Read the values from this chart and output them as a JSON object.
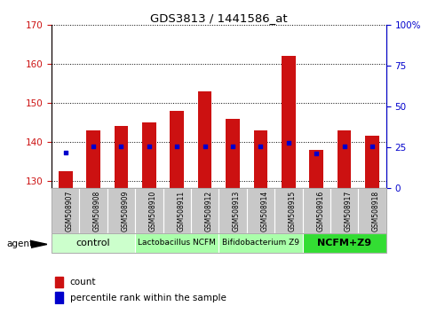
{
  "title": "GDS3813 / 1441586_at",
  "samples": [
    "GSM508907",
    "GSM508908",
    "GSM508909",
    "GSM508910",
    "GSM508911",
    "GSM508912",
    "GSM508913",
    "GSM508914",
    "GSM508915",
    "GSM508916",
    "GSM508917",
    "GSM508918"
  ],
  "counts": [
    132.5,
    143.0,
    144.0,
    145.0,
    148.0,
    153.0,
    146.0,
    143.0,
    162.0,
    138.0,
    143.0,
    141.5
  ],
  "percentile_ranks": [
    22.0,
    26.0,
    26.0,
    26.0,
    26.0,
    26.0,
    26.0,
    26.0,
    28.0,
    21.5,
    26.0,
    25.5
  ],
  "bar_color": "#cc1111",
  "dot_color": "#0000cc",
  "ylim_left": [
    128,
    170
  ],
  "ylim_right": [
    0,
    100
  ],
  "yticks_left": [
    130,
    140,
    150,
    160,
    170
  ],
  "yticks_right": [
    0,
    25,
    50,
    75,
    100
  ],
  "yticklabels_right": [
    "0",
    "25",
    "50",
    "75",
    "100%"
  ],
  "group_labels": [
    "control",
    "Lactobacillus NCFM",
    "Bifidobacterium Z9",
    "NCFM+Z9"
  ],
  "group_ranges": [
    [
      0,
      2
    ],
    [
      3,
      5
    ],
    [
      6,
      8
    ],
    [
      9,
      11
    ]
  ],
  "group_colors": [
    "#ccffcc",
    "#aaffaa",
    "#aaffaa",
    "#33dd33"
  ],
  "group_fontsizes": [
    8,
    6.5,
    6.5,
    8
  ],
  "group_fontweights": [
    "normal",
    "normal",
    "normal",
    "bold"
  ],
  "agent_label": "agent",
  "legend_count_label": "count",
  "legend_pct_label": "percentile rank within the sample",
  "tick_color_left": "#cc1111",
  "tick_color_right": "#0000cc",
  "bar_width": 0.5
}
